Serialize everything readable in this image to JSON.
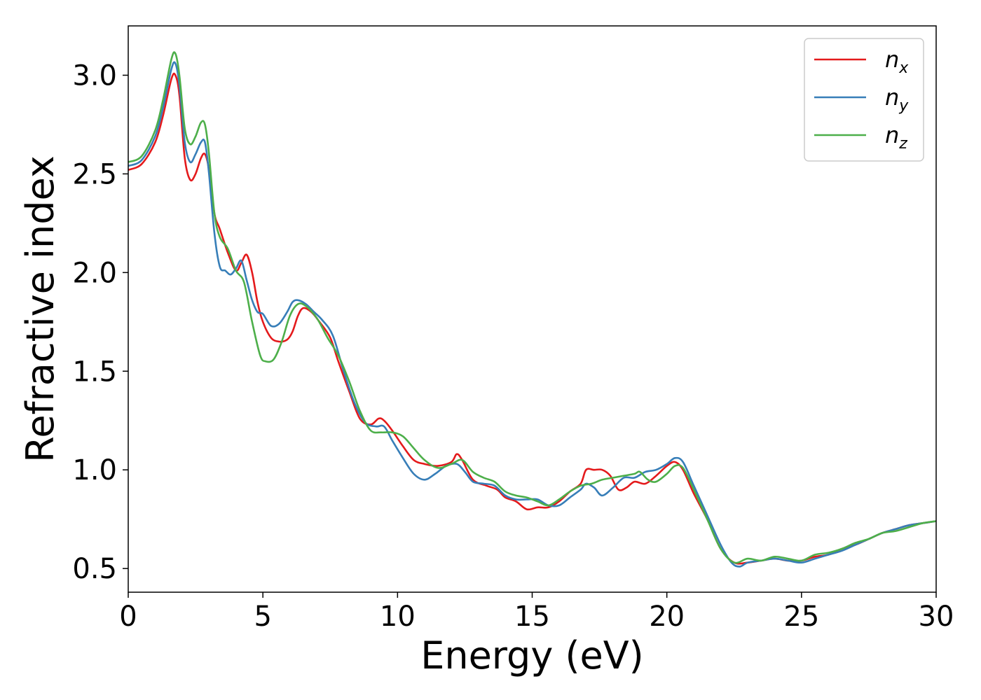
{
  "chart_data": {
    "type": "line",
    "xlabel": "Energy (eV)",
    "ylabel": "Refractive index",
    "xlim": [
      0,
      30
    ],
    "ylim": [
      0.38,
      3.25
    ],
    "xticks": [
      "0",
      "5",
      "10",
      "15",
      "20",
      "25",
      "30"
    ],
    "yticks": [
      "0.5",
      "1.0",
      "1.5",
      "2.0",
      "2.5",
      "3.0"
    ],
    "legend_position": "top-right",
    "grid": false,
    "series": [
      {
        "name": "n",
        "subscript": "x",
        "color": "#e41a1c",
        "x": [
          0,
          0.5,
          1.0,
          1.3,
          1.6,
          1.75,
          1.9,
          2.1,
          2.3,
          2.5,
          2.7,
          2.85,
          3.0,
          3.2,
          3.4,
          3.7,
          4.0,
          4.2,
          4.4,
          4.6,
          4.8,
          5.0,
          5.3,
          5.6,
          5.9,
          6.1,
          6.3,
          6.5,
          6.8,
          7.1,
          7.5,
          7.8,
          8.2,
          8.6,
          9.0,
          9.3,
          9.5,
          9.8,
          10.2,
          10.6,
          11.0,
          11.5,
          12.0,
          12.2,
          12.4,
          12.8,
          13.3,
          13.7,
          14.0,
          14.4,
          14.8,
          15.2,
          15.6,
          16.0,
          16.4,
          16.8,
          17.0,
          17.3,
          17.6,
          17.9,
          18.2,
          18.5,
          18.8,
          19.2,
          19.6,
          20.0,
          20.3,
          20.6,
          21.0,
          21.5,
          22.0,
          22.5,
          23.0,
          23.5,
          24.0,
          24.5,
          25.0,
          25.5,
          26.0,
          26.5,
          27.0,
          27.5,
          28.0,
          28.5,
          29.0,
          29.5,
          30.0
        ],
        "y": [
          2.52,
          2.55,
          2.66,
          2.8,
          2.98,
          3.0,
          2.9,
          2.58,
          2.47,
          2.5,
          2.58,
          2.6,
          2.52,
          2.3,
          2.22,
          2.1,
          2.01,
          2.05,
          2.09,
          2.0,
          1.85,
          1.75,
          1.67,
          1.65,
          1.66,
          1.7,
          1.78,
          1.82,
          1.8,
          1.75,
          1.67,
          1.55,
          1.4,
          1.26,
          1.23,
          1.26,
          1.25,
          1.2,
          1.12,
          1.05,
          1.03,
          1.02,
          1.04,
          1.08,
          1.05,
          0.95,
          0.92,
          0.9,
          0.86,
          0.84,
          0.8,
          0.81,
          0.81,
          0.84,
          0.89,
          0.93,
          1.0,
          1.0,
          1.0,
          0.97,
          0.9,
          0.91,
          0.94,
          0.93,
          0.97,
          1.02,
          1.04,
          1.0,
          0.88,
          0.75,
          0.6,
          0.53,
          0.53,
          0.54,
          0.55,
          0.54,
          0.54,
          0.56,
          0.57,
          0.6,
          0.62,
          0.65,
          0.68,
          0.7,
          0.72,
          0.73,
          0.74
        ]
      },
      {
        "name": "n",
        "subscript": "y",
        "color": "#377eb8",
        "x": [
          0,
          0.5,
          1.0,
          1.3,
          1.6,
          1.75,
          1.9,
          2.1,
          2.3,
          2.5,
          2.7,
          2.85,
          3.0,
          3.2,
          3.4,
          3.6,
          3.8,
          4.0,
          4.2,
          4.4,
          4.6,
          4.8,
          5.0,
          5.3,
          5.6,
          5.9,
          6.1,
          6.3,
          6.6,
          6.9,
          7.2,
          7.6,
          8.0,
          8.4,
          8.8,
          9.2,
          9.5,
          9.8,
          10.2,
          10.6,
          11.0,
          11.4,
          11.8,
          12.2,
          12.5,
          12.8,
          13.2,
          13.6,
          14.0,
          14.4,
          14.8,
          15.2,
          15.6,
          16.0,
          16.4,
          16.8,
          17.0,
          17.3,
          17.6,
          18.0,
          18.4,
          18.8,
          19.2,
          19.6,
          20.0,
          20.3,
          20.6,
          21.0,
          21.5,
          22.0,
          22.4,
          22.7,
          23.0,
          23.5,
          24.0,
          24.5,
          25.0,
          25.5,
          26.0,
          26.5,
          27.0,
          27.5,
          28.0,
          28.5,
          29.0,
          29.5,
          30.0
        ],
        "y": [
          2.54,
          2.57,
          2.69,
          2.84,
          3.03,
          3.06,
          2.95,
          2.66,
          2.56,
          2.6,
          2.66,
          2.66,
          2.5,
          2.2,
          2.03,
          2.01,
          1.99,
          2.02,
          2.06,
          1.96,
          1.86,
          1.8,
          1.79,
          1.73,
          1.74,
          1.8,
          1.85,
          1.86,
          1.84,
          1.8,
          1.76,
          1.68,
          1.5,
          1.34,
          1.24,
          1.22,
          1.22,
          1.15,
          1.06,
          0.98,
          0.95,
          0.98,
          1.02,
          1.03,
          0.99,
          0.94,
          0.93,
          0.92,
          0.87,
          0.85,
          0.85,
          0.85,
          0.82,
          0.82,
          0.86,
          0.9,
          0.93,
          0.91,
          0.87,
          0.91,
          0.96,
          0.96,
          0.99,
          1.0,
          1.03,
          1.06,
          1.04,
          0.92,
          0.77,
          0.62,
          0.53,
          0.51,
          0.53,
          0.54,
          0.55,
          0.54,
          0.53,
          0.55,
          0.57,
          0.59,
          0.62,
          0.65,
          0.68,
          0.7,
          0.72,
          0.73,
          0.74
        ]
      },
      {
        "name": "n",
        "subscript": "z",
        "color": "#4daf4a",
        "x": [
          0,
          0.5,
          1.0,
          1.3,
          1.6,
          1.75,
          1.9,
          2.1,
          2.3,
          2.5,
          2.7,
          2.85,
          3.0,
          3.2,
          3.4,
          3.7,
          4.0,
          4.3,
          4.6,
          4.9,
          5.1,
          5.4,
          5.7,
          6.0,
          6.3,
          6.6,
          7.0,
          7.4,
          7.8,
          8.2,
          8.6,
          9.0,
          9.4,
          9.8,
          10.2,
          10.6,
          11.0,
          11.5,
          12.0,
          12.4,
          12.8,
          13.2,
          13.6,
          14.0,
          14.4,
          14.8,
          15.2,
          15.6,
          16.0,
          16.4,
          16.8,
          17.2,
          17.6,
          18.0,
          18.4,
          18.8,
          19.0,
          19.3,
          19.6,
          20.0,
          20.3,
          20.6,
          21.0,
          21.5,
          22.0,
          22.5,
          23.0,
          23.5,
          24.0,
          24.5,
          25.0,
          25.5,
          26.0,
          26.5,
          27.0,
          27.5,
          28.0,
          28.5,
          29.0,
          29.5,
          30.0
        ],
        "y": [
          2.56,
          2.59,
          2.72,
          2.88,
          3.08,
          3.11,
          3.0,
          2.73,
          2.65,
          2.69,
          2.76,
          2.75,
          2.6,
          2.3,
          2.18,
          2.12,
          2.01,
          1.95,
          1.75,
          1.58,
          1.55,
          1.56,
          1.65,
          1.78,
          1.84,
          1.83,
          1.77,
          1.67,
          1.58,
          1.45,
          1.3,
          1.2,
          1.19,
          1.19,
          1.17,
          1.11,
          1.05,
          1.01,
          1.03,
          1.05,
          0.99,
          0.96,
          0.94,
          0.89,
          0.87,
          0.86,
          0.84,
          0.82,
          0.85,
          0.89,
          0.92,
          0.93,
          0.95,
          0.96,
          0.97,
          0.98,
          0.99,
          0.95,
          0.94,
          0.98,
          1.02,
          1.01,
          0.9,
          0.75,
          0.6,
          0.53,
          0.55,
          0.54,
          0.56,
          0.55,
          0.54,
          0.57,
          0.58,
          0.6,
          0.63,
          0.65,
          0.68,
          0.69,
          0.71,
          0.73,
          0.74
        ]
      }
    ]
  }
}
